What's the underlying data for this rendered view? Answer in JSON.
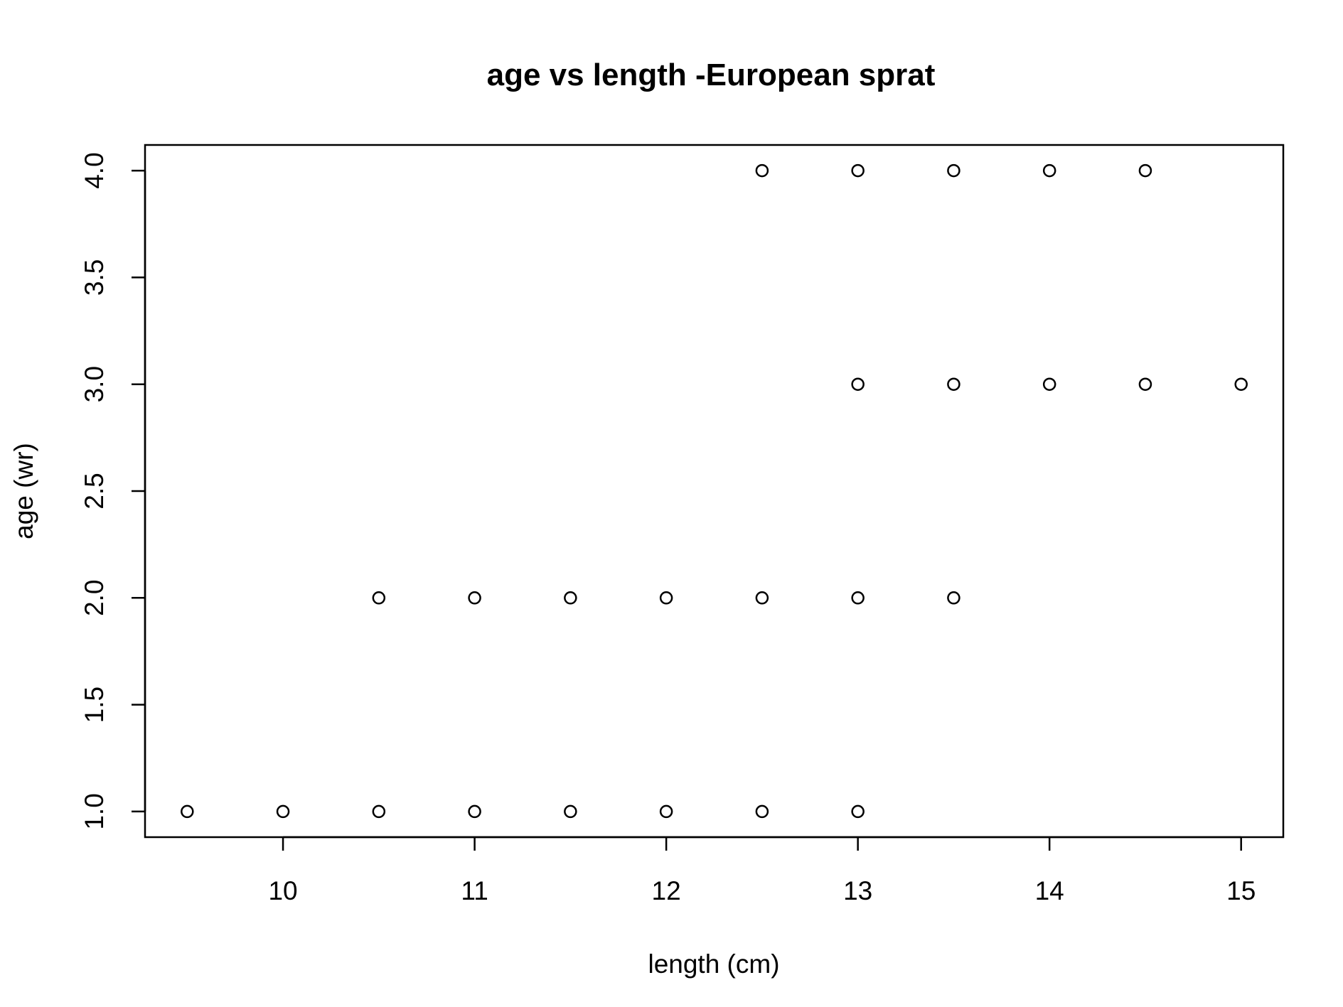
{
  "chart_data": {
    "type": "scatter",
    "title": "age vs length -European sprat",
    "xlabel": "length (cm)",
    "ylabel": "age (wr)",
    "xlim": [
      9.28,
      15.22
    ],
    "ylim": [
      0.88,
      4.12
    ],
    "x_ticks": [
      10,
      11,
      12,
      13,
      14,
      15
    ],
    "y_ticks": [
      1.0,
      1.5,
      2.0,
      2.5,
      3.0,
      3.5,
      4.0
    ],
    "x_tick_labels": [
      "10",
      "11",
      "12",
      "13",
      "14",
      "15"
    ],
    "y_tick_labels": [
      "1.0",
      "1.5",
      "2.0",
      "2.5",
      "3.0",
      "3.5",
      "4.0"
    ],
    "marker": "open-circle",
    "grid": false,
    "color": "#000000",
    "points": [
      {
        "x": 9.5,
        "y": 1
      },
      {
        "x": 10,
        "y": 1
      },
      {
        "x": 10.5,
        "y": 1
      },
      {
        "x": 11,
        "y": 1
      },
      {
        "x": 11.5,
        "y": 1
      },
      {
        "x": 12,
        "y": 1
      },
      {
        "x": 12.5,
        "y": 1
      },
      {
        "x": 13,
        "y": 1
      },
      {
        "x": 10.5,
        "y": 2
      },
      {
        "x": 11,
        "y": 2
      },
      {
        "x": 11.5,
        "y": 2
      },
      {
        "x": 12,
        "y": 2
      },
      {
        "x": 12.5,
        "y": 2
      },
      {
        "x": 13,
        "y": 2
      },
      {
        "x": 13.5,
        "y": 2
      },
      {
        "x": 13,
        "y": 3
      },
      {
        "x": 13.5,
        "y": 3
      },
      {
        "x": 14,
        "y": 3
      },
      {
        "x": 14.5,
        "y": 3
      },
      {
        "x": 15,
        "y": 3
      },
      {
        "x": 12.5,
        "y": 4
      },
      {
        "x": 13,
        "y": 4
      },
      {
        "x": 13.5,
        "y": 4
      },
      {
        "x": 14,
        "y": 4
      },
      {
        "x": 14.5,
        "y": 4
      }
    ]
  }
}
